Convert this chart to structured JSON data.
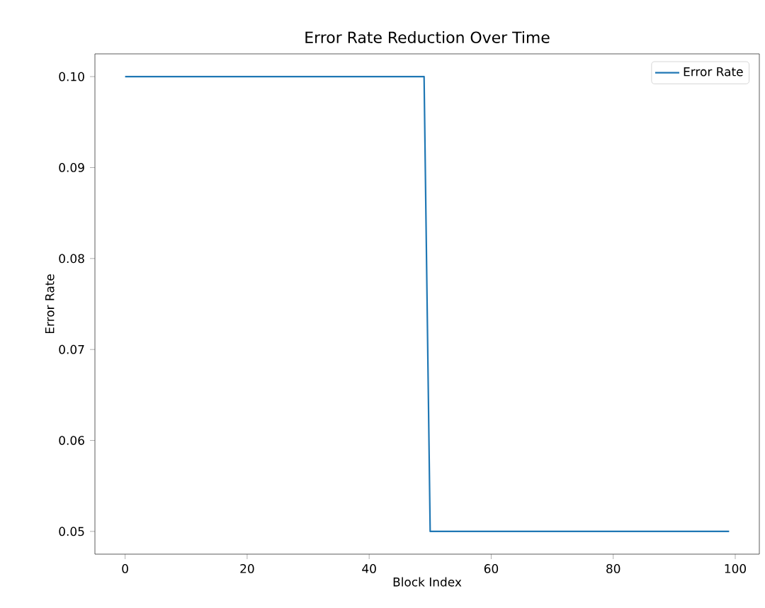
{
  "chart_data": {
    "type": "line",
    "title": "Error Rate Reduction Over Time",
    "xlabel": "Block Index",
    "ylabel": "Error Rate",
    "x": [
      0,
      49,
      50,
      99
    ],
    "series": [
      {
        "name": "Error Rate",
        "color": "#1f77b4",
        "values": [
          0.1,
          0.1,
          0.05,
          0.05
        ]
      }
    ],
    "xlim": [
      -4.95,
      103.95
    ],
    "xticks": [
      0,
      20,
      40,
      60,
      80,
      100
    ],
    "ylim": [
      0.0475,
      0.1025
    ],
    "yticks": [
      0.05,
      0.06,
      0.07,
      0.08,
      0.09,
      {
        "value": 0.1,
        "label": "0.10"
      }
    ],
    "legend": "top right",
    "grid": false,
    "marker": "none",
    "line_style": "solid"
  }
}
